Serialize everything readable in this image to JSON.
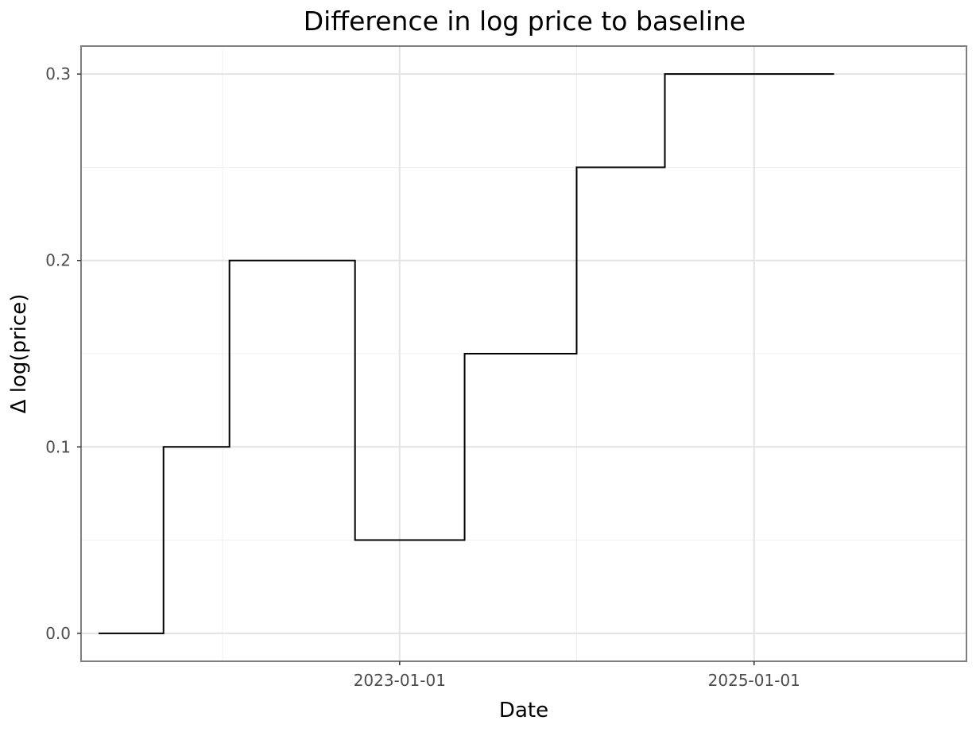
{
  "chart_data": {
    "type": "line",
    "step": "post",
    "title": "Difference in log price to baseline",
    "xlabel": "Date",
    "ylabel": "Δ log(price)",
    "x_scale": "date",
    "xlim": [
      "2021-03-15",
      "2026-03-15"
    ],
    "ylim": [
      -0.015,
      0.315
    ],
    "x_ticks": [
      {
        "value": "2023-01-01",
        "label": "2023-01-01"
      },
      {
        "value": "2025-01-01",
        "label": "2025-01-01"
      }
    ],
    "y_ticks": [
      {
        "value": 0.0,
        "label": "0.0"
      },
      {
        "value": 0.1,
        "label": "0.1"
      },
      {
        "value": 0.2,
        "label": "0.2"
      },
      {
        "value": 0.3,
        "label": "0.3"
      }
    ],
    "minor_x_ticks": [
      "2022-01-01",
      "2024-01-01"
    ],
    "minor_y_ticks": [
      0.05,
      0.15,
      0.25
    ],
    "grid": true,
    "legend": "none",
    "series": [
      {
        "color": "#000000",
        "points": [
          {
            "x": "2021-04-20",
            "y": 0.0
          },
          {
            "x": "2021-09-01",
            "y": 0.1
          },
          {
            "x": "2022-01-15",
            "y": 0.2
          },
          {
            "x": "2022-10-01",
            "y": 0.05
          },
          {
            "x": "2023-05-15",
            "y": 0.15
          },
          {
            "x": "2024-01-01",
            "y": 0.25
          },
          {
            "x": "2024-07-01",
            "y": 0.3
          },
          {
            "x": "2025-06-15",
            "y": 0.3
          }
        ]
      }
    ]
  }
}
